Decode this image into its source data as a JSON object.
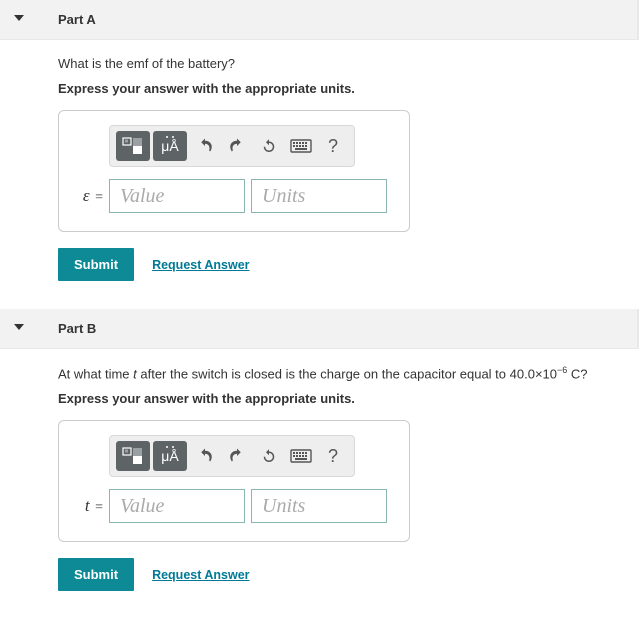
{
  "parts": [
    {
      "title": "Part A",
      "question_html": "What is the emf of the battery?",
      "instruction": "Express your answer with the appropriate units.",
      "variable": "ε",
      "value_placeholder": "Value",
      "units_placeholder": "Units",
      "submit_label": "Submit",
      "request_label": "Request Answer"
    },
    {
      "title": "Part B",
      "question_html": "At what time <i>t</i> after the switch is closed is the charge on the capacitor equal to 40.0×10<sup>−6</sup> C?",
      "instruction": "Express your answer with the appropriate units.",
      "variable": "t",
      "value_placeholder": "Value",
      "units_placeholder": "Units",
      "submit_label": "Submit",
      "request_label": "Request Answer"
    }
  ],
  "toolbar": {
    "templates_icon": "templates-icon",
    "units_label": "μÅ",
    "undo_icon": "undo-icon",
    "redo_icon": "redo-icon",
    "reset_icon": "reset-icon",
    "keyboard_icon": "keyboard-icon",
    "help_label": "?"
  },
  "colors": {
    "header_bg": "#f2f2f2",
    "submit_bg": "#0e8a97",
    "link": "#007a96",
    "input_border": "#89b7b0",
    "toolbar_bg": "#eeeeee",
    "dark_btn": "#5e6366"
  }
}
